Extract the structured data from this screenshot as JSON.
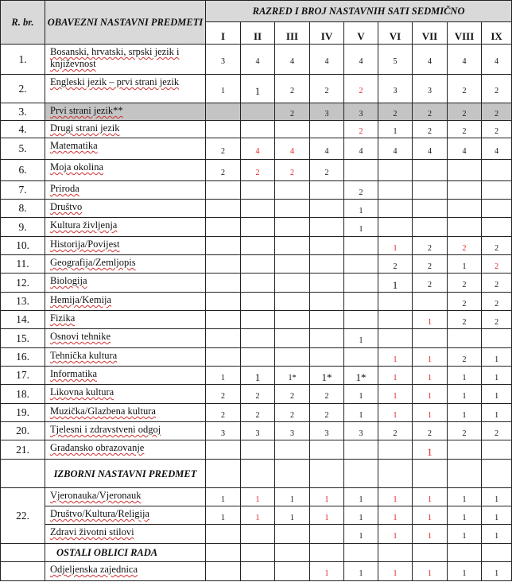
{
  "header": {
    "rbr": "R. br.",
    "subjects": "OBAVEZNI NASTAVNI PREDMETI",
    "grades_title": "RAZRED I BROJ NASTAVNIH SATI SEDMIČNO",
    "grades": [
      "I",
      "II",
      "III",
      "IV",
      "V",
      "VI",
      "VII",
      "VIII",
      "IX"
    ]
  },
  "colors": {
    "red_value": "#e02020",
    "header_bg": "#d9d9d9",
    "shaded_row_bg": "#c4c4c4"
  },
  "rows": [
    {
      "no": "1.",
      "subject": "Bosanski, hrvatski, srpski jezik i književnost",
      "values": [
        "3",
        "4",
        "4",
        "4",
        "4",
        "5",
        "4",
        "4",
        "4"
      ],
      "red": []
    },
    {
      "no": "2.",
      "subject": "Engleski jezik – prvi strani jezik",
      "values": [
        "1",
        "1",
        "2",
        "2",
        "2",
        "3",
        "3",
        "2",
        "2"
      ],
      "red": [
        4
      ],
      "big": [
        1
      ]
    },
    {
      "no": "3.",
      "subject": "Prvi strani jezik**",
      "values": [
        "",
        "",
        "2",
        "3",
        "3",
        "2",
        "2",
        "2",
        "2"
      ],
      "red": [],
      "shaded": true
    },
    {
      "no": "4.",
      "subject": "Drugi strani jezik",
      "values": [
        "",
        "",
        "",
        "",
        "2",
        "1",
        "2",
        "2",
        "2"
      ],
      "red": [
        4
      ]
    },
    {
      "no": "5.",
      "subject": "Matematika",
      "values": [
        "2",
        "4",
        "4",
        "4",
        "4",
        "4",
        "4",
        "4",
        "4"
      ],
      "red": [
        1,
        2
      ]
    },
    {
      "no": "6.",
      "subject": "Moja okolina",
      "values": [
        "2",
        "2",
        "2",
        "2",
        "",
        "",
        "",
        "",
        ""
      ],
      "red": [
        1,
        2
      ]
    },
    {
      "no": "7.",
      "subject": "Priroda",
      "values": [
        "",
        "",
        "",
        "",
        "2",
        "",
        "",
        "",
        ""
      ],
      "red": []
    },
    {
      "no": "8.",
      "subject": "Društvo",
      "values": [
        "",
        "",
        "",
        "",
        "1",
        "",
        "",
        "",
        ""
      ],
      "red": []
    },
    {
      "no": "9.",
      "subject": "Kultura življenja",
      "values": [
        "",
        "",
        "",
        "",
        "1",
        "",
        "",
        "",
        ""
      ],
      "red": []
    },
    {
      "no": "10.",
      "subject": "Historija/Povijest",
      "values": [
        "",
        "",
        "",
        "",
        "",
        "1",
        "2",
        "2",
        "2"
      ],
      "red": [
        5,
        7
      ]
    },
    {
      "no": "11.",
      "subject": "Geografija/Zemljopis",
      "values": [
        "",
        "",
        "",
        "",
        "",
        "2",
        "2",
        "1",
        "2"
      ],
      "red": [
        8
      ]
    },
    {
      "no": "12.",
      "subject": "Biologija",
      "values": [
        "",
        "",
        "",
        "",
        "",
        "1",
        "2",
        "2",
        "2"
      ],
      "red": [],
      "big": [
        5
      ]
    },
    {
      "no": "13.",
      "subject": "Hemija/Kemija",
      "values": [
        "",
        "",
        "",
        "",
        "",
        "",
        "",
        "2",
        "2"
      ],
      "red": []
    },
    {
      "no": "14.",
      "subject": "Fizika",
      "values": [
        "",
        "",
        "",
        "",
        "",
        "",
        "1",
        "2",
        "2"
      ],
      "red": [
        6
      ]
    },
    {
      "no": "15.",
      "subject": "Osnovi tehnike",
      "values": [
        "",
        "",
        "",
        "",
        "1",
        "",
        "",
        "",
        ""
      ],
      "red": []
    },
    {
      "no": "16.",
      "subject": "Tehnička kultura",
      "values": [
        "",
        "",
        "",
        "",
        "",
        "1",
        "1",
        "2",
        "1"
      ],
      "red": [
        5,
        6
      ]
    },
    {
      "no": "17.",
      "subject": "Informatika",
      "values": [
        "1",
        "1",
        "1*",
        "1*",
        "1*",
        "1",
        "1",
        "1",
        "1"
      ],
      "red": [
        5,
        6
      ],
      "big": [
        1,
        3,
        4
      ]
    },
    {
      "no": "18.",
      "subject": "Likovna kultura",
      "values": [
        "2",
        "2",
        "2",
        "2",
        "1",
        "1",
        "1",
        "1",
        "1"
      ],
      "red": [
        5,
        6
      ]
    },
    {
      "no": "19.",
      "subject": "Muzička/Glazbena kultura",
      "values": [
        "2",
        "2",
        "2",
        "2",
        "1",
        "1",
        "1",
        "1",
        "1"
      ],
      "red": [
        5,
        6
      ]
    },
    {
      "no": "20.",
      "subject": "Tjelesni i zdravstveni odgoj",
      "values": [
        "3",
        "3",
        "3",
        "3",
        "3",
        "2",
        "2",
        "2",
        "2"
      ],
      "red": []
    },
    {
      "no": "21.",
      "subject": "Građansko obrazovanje",
      "values": [
        "",
        "",
        "",
        "",
        "",
        "",
        "1",
        "",
        ""
      ],
      "red": [
        6
      ],
      "big": [
        6
      ]
    }
  ],
  "elective_section": "IZBORNI NASTAVNI PREDMET",
  "elective_no": "22.",
  "electives": [
    {
      "subject": "Vjeronauka/Vjeronauk",
      "values": [
        "1",
        "1",
        "1",
        "1",
        "1",
        "1",
        "1",
        "1",
        "1"
      ],
      "red": [
        1,
        3,
        5,
        6
      ]
    },
    {
      "subject": "Društvo/Kultura/Religija",
      "values": [
        "1",
        "1",
        "1",
        "1",
        "1",
        "1",
        "1",
        "1",
        "1"
      ],
      "red": [
        1,
        3,
        5,
        6
      ]
    },
    {
      "subject": "Zdravi životni stilovi",
      "values": [
        "",
        "",
        "",
        "",
        "1",
        "1",
        "1",
        "1",
        "1"
      ],
      "red": [
        5,
        6
      ]
    }
  ],
  "other_section": "OSTALI OBLICI RADA",
  "other": [
    {
      "subject": "Odjeljenska zajednica",
      "values": [
        "",
        "",
        "",
        "1",
        "1",
        "1",
        "1",
        "1",
        "1"
      ],
      "red": [
        3,
        5,
        6
      ]
    }
  ]
}
